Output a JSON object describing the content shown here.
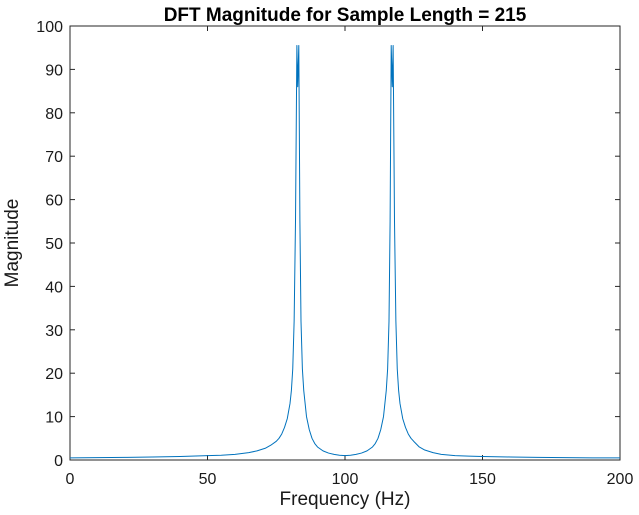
{
  "chart_data": {
    "type": "line",
    "title": "DFT Magnitude for Sample Length = 215",
    "xlabel": "Frequency (Hz)",
    "ylabel": "Magnitude",
    "xlim": [
      0,
      200
    ],
    "ylim": [
      0,
      100
    ],
    "xticks": [
      0,
      50,
      100,
      150,
      200
    ],
    "yticks": [
      0,
      10,
      20,
      30,
      40,
      50,
      60,
      70,
      80,
      90,
      100
    ],
    "grid": false,
    "series": [
      {
        "color": "#0072bd",
        "x": [
          0,
          10,
          20,
          30,
          40,
          50,
          55,
          60,
          65,
          68,
          71,
          73,
          75,
          76,
          77,
          78,
          79,
          80,
          80.5,
          81,
          81.5,
          82,
          82.5,
          82.8,
          83.2,
          83.6,
          84,
          84.5,
          85,
          85.5,
          86,
          87,
          88,
          89,
          90,
          92,
          94,
          96,
          98,
          100,
          102,
          104,
          106,
          108,
          110,
          111,
          112,
          113,
          114,
          114.5,
          115,
          115.5,
          116,
          116.4,
          116.8,
          117.2,
          117.5,
          118,
          118.5,
          119,
          119.5,
          120,
          121,
          122,
          123,
          124,
          125,
          127,
          129,
          132,
          135,
          140,
          145,
          150,
          160,
          170,
          180,
          190,
          200
        ],
        "y": [
          0.5,
          0.55,
          0.6,
          0.7,
          0.8,
          1.0,
          1.1,
          1.3,
          1.7,
          2.1,
          2.7,
          3.4,
          4.3,
          5.0,
          6.0,
          7.5,
          9.5,
          13.0,
          16.0,
          21.0,
          32.0,
          55.0,
          95.5,
          86.0,
          95.5,
          55.0,
          32.0,
          21.0,
          16.0,
          13.0,
          10.0,
          7.0,
          5.0,
          3.8,
          3.0,
          2.1,
          1.6,
          1.3,
          1.1,
          1.0,
          1.1,
          1.3,
          1.6,
          2.1,
          3.0,
          3.8,
          5.0,
          7.0,
          10.0,
          13.0,
          16.0,
          21.0,
          32.0,
          55.0,
          95.5,
          86.0,
          95.5,
          55.0,
          32.0,
          21.0,
          16.0,
          13.0,
          9.5,
          7.5,
          6.0,
          5.0,
          4.3,
          3.0,
          2.3,
          1.7,
          1.3,
          1.0,
          0.9,
          0.8,
          0.7,
          0.6,
          0.55,
          0.5,
          0.5
        ]
      }
    ]
  }
}
